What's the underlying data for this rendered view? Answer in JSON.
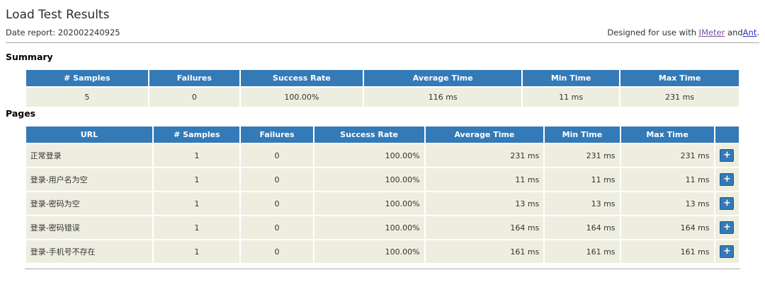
{
  "header": {
    "title": "Load Test Results",
    "date_report": "Date report: 202002240925",
    "designed_prefix": "Designed for use with",
    "jmeter_link_label": "JMeter",
    "and_text": "and",
    "ant_link_label": "Ant",
    "period": "."
  },
  "summary": {
    "heading": "Summary",
    "columns": [
      "# Samples",
      "Failures",
      "Success Rate",
      "Average Time",
      "Min Time",
      "Max Time"
    ],
    "row": {
      "samples": "5",
      "failures": "0",
      "success_rate": "100.00%",
      "avg": "116 ms",
      "min": "11 ms",
      "max": "231 ms"
    }
  },
  "pages": {
    "heading": "Pages",
    "columns": [
      "URL",
      "# Samples",
      "Failures",
      "Success Rate",
      "Average Time",
      "Min Time",
      "Max Time",
      ""
    ],
    "expand_button_label": "+",
    "rows": [
      {
        "url": "正常登录",
        "samples": "1",
        "failures": "0",
        "success_rate": "100.00%",
        "avg": "231 ms",
        "min": "231 ms",
        "max": "231 ms"
      },
      {
        "url": "登录-用户名为空",
        "samples": "1",
        "failures": "0",
        "success_rate": "100.00%",
        "avg": "11 ms",
        "min": "11 ms",
        "max": "11 ms"
      },
      {
        "url": "登录-密码为空",
        "samples": "1",
        "failures": "0",
        "success_rate": "100.00%",
        "avg": "13 ms",
        "min": "13 ms",
        "max": "13 ms"
      },
      {
        "url": "登录-密码错误",
        "samples": "1",
        "failures": "0",
        "success_rate": "100.00%",
        "avg": "164 ms",
        "min": "164 ms",
        "max": "164 ms"
      },
      {
        "url": "登录-手机号不存在",
        "samples": "1",
        "failures": "0",
        "success_rate": "100.00%",
        "avg": "161 ms",
        "min": "161 ms",
        "max": "161 ms"
      }
    ]
  },
  "colors": {
    "header_bg": "#337ab7",
    "row_bg": "#eeeee0",
    "link_jmeter": "#7a50a3",
    "link_ant": "#3333cc",
    "divider": "#a9a9a9",
    "text": "#333333"
  }
}
